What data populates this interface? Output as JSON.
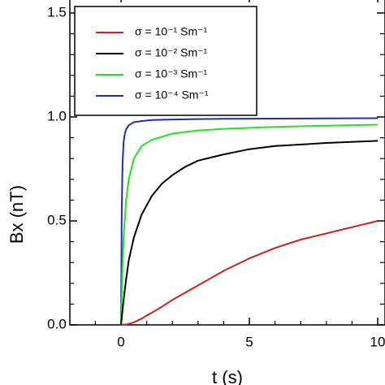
{
  "chart_data": {
    "type": "line",
    "orientation": "upside-down",
    "xlabel": "t (s)",
    "ylabel": "Bx (nT)",
    "xlim": [
      -1,
      10
    ],
    "ylim": [
      0.0,
      1.5
    ],
    "x_ticks": [
      0,
      5,
      10
    ],
    "x_tick_labels": [
      "0",
      "5",
      "10"
    ],
    "y_ticks": [
      0.0,
      0.5,
      1.0,
      1.5
    ],
    "y_tick_labels": [
      "0.0",
      "0.5",
      "1.0",
      "1.5"
    ],
    "grid": false,
    "legend": "bottom-left",
    "series": [
      {
        "name": "σ = 10⁻⁴ Sm⁻¹",
        "color": "#1f2fb4",
        "x": [
          0,
          0.03,
          0.06,
          0.1,
          0.15,
          0.2,
          0.3,
          0.5,
          0.8,
          1.2,
          2,
          3,
          4,
          6,
          8,
          10
        ],
        "y": [
          0,
          0.55,
          0.78,
          0.88,
          0.92,
          0.94,
          0.96,
          0.975,
          0.98,
          0.985,
          0.988,
          0.99,
          0.991,
          0.992,
          0.993,
          0.994
        ]
      },
      {
        "name": "σ = 10⁻³ Sm⁻¹",
        "color": "#22e41e",
        "x": [
          0,
          0.05,
          0.1,
          0.2,
          0.3,
          0.5,
          0.8,
          1.2,
          2,
          3,
          4,
          6,
          8,
          10
        ],
        "y": [
          0,
          0.25,
          0.42,
          0.6,
          0.7,
          0.8,
          0.86,
          0.89,
          0.92,
          0.935,
          0.943,
          0.952,
          0.958,
          0.963
        ]
      },
      {
        "name": "σ = 10⁻² Sm⁻¹",
        "color": "#000000",
        "x": [
          0,
          0.1,
          0.2,
          0.3,
          0.5,
          0.8,
          1.2,
          1.6,
          2,
          2.5,
          3,
          4,
          5,
          6,
          8,
          10
        ],
        "y": [
          0,
          0.12,
          0.22,
          0.31,
          0.42,
          0.53,
          0.62,
          0.68,
          0.72,
          0.76,
          0.79,
          0.82,
          0.845,
          0.86,
          0.875,
          0.885
        ]
      },
      {
        "name": "σ = 10⁻¹ Sm⁻¹",
        "color": "#d21f1b",
        "x": [
          0,
          0.25,
          0.5,
          0.8,
          1,
          1.5,
          2,
          3,
          4,
          5,
          6,
          7,
          8,
          9,
          10
        ],
        "y": [
          0,
          0.003,
          0.012,
          0.03,
          0.045,
          0.08,
          0.12,
          0.19,
          0.26,
          0.32,
          0.37,
          0.41,
          0.44,
          0.47,
          0.5
        ]
      }
    ]
  }
}
